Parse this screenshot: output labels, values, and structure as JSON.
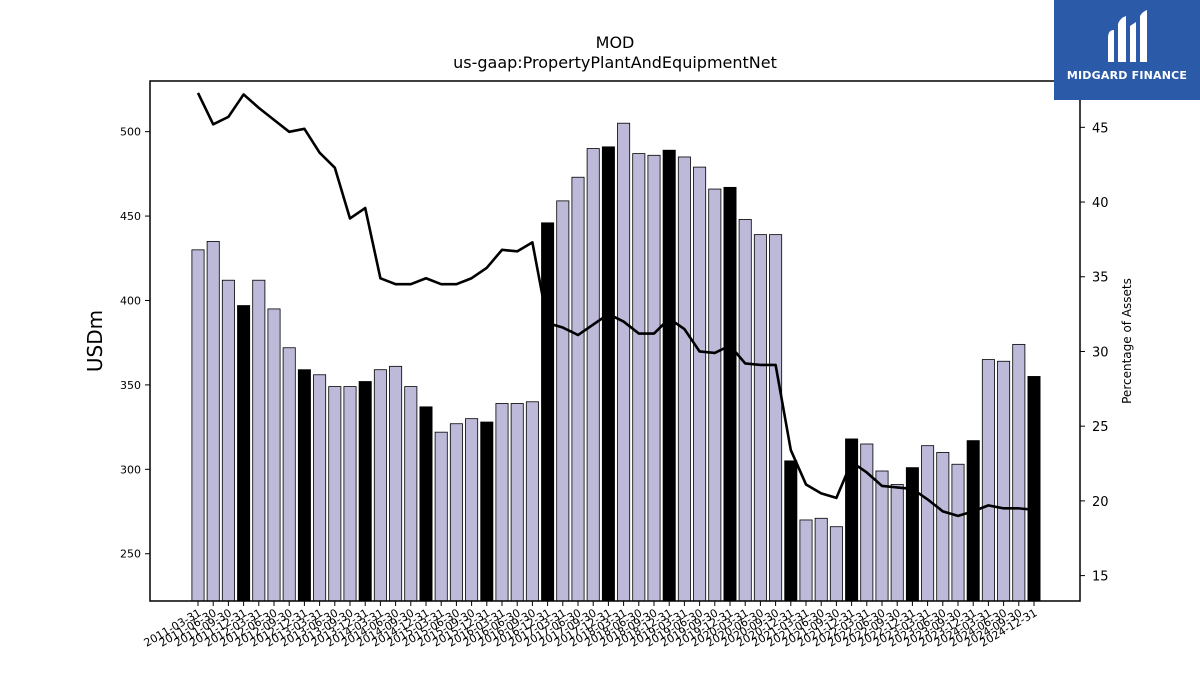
{
  "chart_data": {
    "type": "bar",
    "title": "MOD",
    "subtitle": "us-gaap:PropertyPlantAndEquipmentNet",
    "ylabel": "USDm",
    "y2label": "Percentage of Assets",
    "ylim": [
      222,
      530
    ],
    "y2lim": [
      13.3,
      48.1
    ],
    "yticks": [
      250,
      300,
      350,
      400,
      450,
      500
    ],
    "y2ticks": [
      15,
      20,
      25,
      30,
      35,
      40,
      45
    ],
    "categories": [
      "2011-03-31",
      "2011-06-30",
      "2011-09-30",
      "2011-12-31",
      "2012-03-31",
      "2012-06-30",
      "2012-09-30",
      "2012-12-31",
      "2013-03-31",
      "2013-06-30",
      "2013-09-30",
      "2013-12-31",
      "2014-03-31",
      "2014-06-30",
      "2014-09-30",
      "2014-12-31",
      "2015-03-31",
      "2015-06-30",
      "2015-09-30",
      "2015-12-31",
      "2016-03-31",
      "2016-06-30",
      "2016-09-30",
      "2016-12-31",
      "2017-03-31",
      "2017-06-30",
      "2017-09-30",
      "2017-12-31",
      "2018-03-31",
      "2018-06-30",
      "2018-09-30",
      "2018-12-31",
      "2019-03-31",
      "2019-06-30",
      "2019-09-30",
      "2019-12-31",
      "2020-03-31",
      "2020-06-30",
      "2020-09-30",
      "2020-12-31",
      "2021-03-31",
      "2021-06-30",
      "2021-09-30",
      "2021-12-31",
      "2022-03-31",
      "2022-06-30",
      "2022-09-30",
      "2022-12-31",
      "2023-03-31",
      "2023-06-30",
      "2023-09-30",
      "2023-12-31",
      "2024-03-31",
      "2024-06-30",
      "2024-09-30",
      "2024-12-31"
    ],
    "xticklabels": [
      "2011-03-31",
      "2011-06-30",
      "2011-09-30",
      "2011-12-31",
      "2012-03-31",
      "2012-06-30",
      "2012-09-30",
      "2012-12-31",
      "2013-03-31",
      "2013-06-30",
      "2013-09-30",
      "2013-12-31",
      "2014-03-31",
      "2014-06-30",
      "2014-09-30",
      "2014-12-31",
      "2015-03-31",
      "2015-06-30",
      "2015-09-30",
      "2015-12-31",
      "2016-03-31",
      "2016-06-30",
      "2016-09-30",
      "2016-12-31",
      "2017-03-31",
      "2017-06-30",
      "2017-09-30",
      "2017-12-31",
      "2018-03-31",
      "2018-06-30",
      "2018-09-30",
      "2018-12-31",
      "2019-03-31",
      "2019-06-30",
      "2019-09-30",
      "2019-12-31",
      "2020-03-31",
      "2020-06-30",
      "2020-09-30",
      "2020-12-31",
      "2021-03-31",
      "2021-06-30",
      "2021-09-30",
      "2021-12-31",
      "2022-03-31",
      "2022-06-30",
      "2022-09-30",
      "2022-12-31",
      "2023-03-31",
      "2023-06-30",
      "2023-09-30",
      "2023-12-31",
      "2024-03-31",
      "2024-06-30",
      "2024-09-30",
      "2024-12-31"
    ],
    "values": [
      430,
      435,
      412,
      397,
      412,
      395,
      372,
      359,
      356,
      349,
      349,
      352,
      359,
      361,
      349,
      337,
      322,
      327,
      330,
      328,
      339,
      339,
      340,
      446,
      459,
      473,
      490,
      491,
      505,
      487,
      486,
      489,
      485,
      479,
      466,
      467,
      448,
      439,
      439,
      305,
      270,
      271,
      266,
      318,
      315,
      299,
      291,
      301,
      314,
      310,
      303,
      317,
      365,
      364,
      374,
      355
    ],
    "fiscal_year_end": [
      false,
      false,
      false,
      true,
      false,
      false,
      false,
      true,
      false,
      false,
      false,
      true,
      false,
      false,
      false,
      true,
      false,
      false,
      false,
      true,
      false,
      false,
      false,
      true,
      false,
      false,
      false,
      true,
      false,
      false,
      false,
      true,
      false,
      false,
      false,
      true,
      false,
      false,
      false,
      true,
      false,
      false,
      false,
      true,
      false,
      false,
      false,
      true,
      false,
      false,
      false,
      true,
      false,
      false,
      false,
      true
    ],
    "line_series": {
      "axis": "right",
      "values": [
        47.3,
        45.2,
        45.7,
        47.2,
        46.3,
        45.5,
        44.7,
        44.9,
        43.3,
        42.3,
        38.9,
        39.6,
        34.9,
        34.5,
        34.5,
        34.9,
        34.5,
        34.5,
        34.9,
        35.6,
        36.8,
        36.7,
        37.3,
        31.9,
        31.6,
        31.1,
        31.8,
        32.5,
        32.0,
        31.2,
        31.2,
        32.2,
        31.5,
        30.0,
        29.9,
        30.4,
        29.2,
        29.1,
        29.1,
        23.4,
        21.1,
        20.5,
        20.2,
        22.6,
        21.9,
        21.0,
        20.9,
        20.8,
        20.1,
        19.3,
        19.0,
        19.3,
        19.7,
        19.5,
        19.5,
        19.4
      ]
    },
    "colors": {
      "bar": "#bcb9d9",
      "bar_year_end": "#000000",
      "line": "#000000",
      "axes": "#000000"
    },
    "grid": false,
    "legend": "none"
  },
  "logo": {
    "text": "MIDGARD FINANCE",
    "bg": "#2b5aa8"
  }
}
